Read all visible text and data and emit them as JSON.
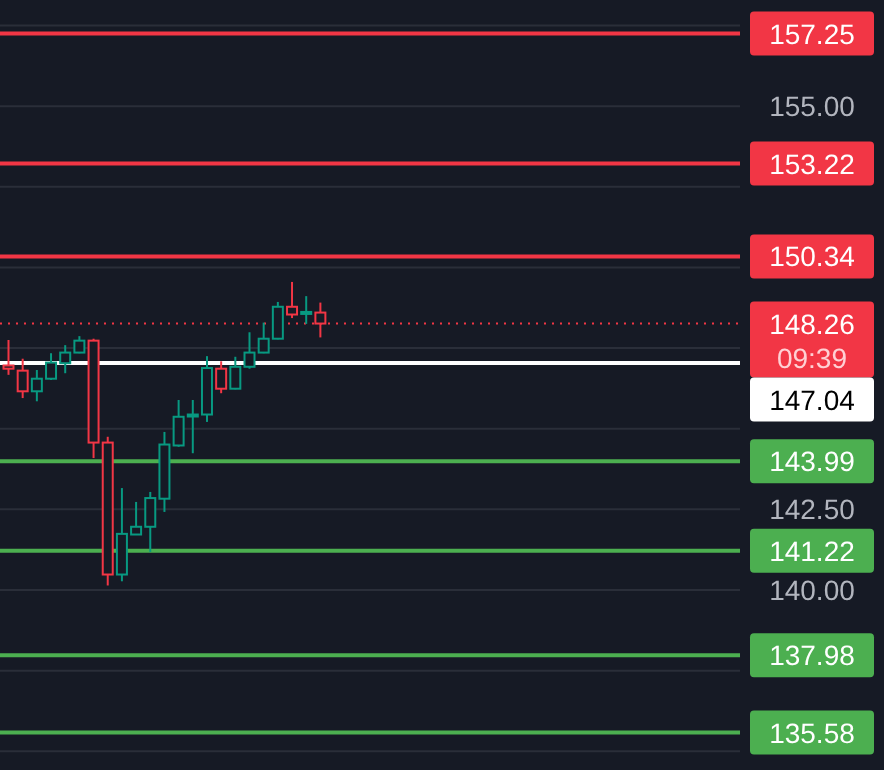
{
  "chart_data": {
    "type": "candlestick",
    "categories": [
      null,
      null,
      null,
      null,
      null,
      null,
      null,
      null,
      null,
      null,
      null,
      null,
      null,
      null,
      null,
      null,
      null,
      null,
      null,
      null,
      null,
      null,
      null,
      null,
      null,
      null,
      null,
      null,
      null,
      null,
      null,
      null,
      null,
      null,
      null,
      null,
      null,
      null,
      null,
      null,
      null,
      null,
      null,
      null,
      null,
      null,
      null,
      null,
      null,
      null,
      null,
      null
    ],
    "ohlc": [
      [
        146.96,
        147.75,
        146.67,
        146.86
      ],
      [
        146.8,
        147.17,
        145.95,
        146.16
      ],
      [
        146.16,
        146.82,
        145.85,
        146.55
      ],
      [
        146.55,
        147.34,
        146.51,
        147.05
      ],
      [
        147.03,
        147.59,
        146.72,
        147.36
      ],
      [
        147.36,
        147.87,
        147.34,
        147.73
      ],
      [
        147.73,
        147.79,
        144.09,
        144.57
      ],
      [
        144.57,
        144.75,
        140.14,
        140.48
      ],
      [
        140.48,
        143.16,
        140.27,
        141.74
      ],
      [
        141.72,
        142.73,
        141.72,
        141.96
      ],
      [
        141.96,
        143.04,
        141.18,
        142.85
      ],
      [
        142.83,
        144.9,
        142.42,
        144.51
      ],
      [
        144.48,
        145.89,
        144.44,
        145.37
      ],
      [
        145.44,
        145.89,
        144.24,
        145.44
      ],
      [
        145.44,
        147.25,
        145.21,
        146.88
      ],
      [
        146.86,
        147.09,
        146.1,
        146.24
      ],
      [
        146.24,
        147.23,
        146.22,
        146.92
      ],
      [
        146.92,
        147.99,
        146.86,
        147.36
      ],
      [
        147.36,
        148.29,
        147.34,
        147.79
      ],
      [
        147.79,
        148.93,
        147.77,
        148.78
      ],
      [
        148.78,
        149.55,
        148.43,
        148.54
      ],
      [
        148.62,
        149.11,
        148.25,
        148.62
      ],
      [
        148.6,
        148.91,
        147.83,
        148.26
      ],
      null,
      null,
      null,
      null,
      null,
      null,
      null,
      null,
      null,
      null,
      null,
      null,
      null,
      null,
      null,
      null,
      null,
      null,
      null,
      null,
      null,
      null,
      null,
      null,
      null,
      null,
      null,
      null,
      null
    ],
    "colors": [
      "#f23645",
      "#f23645",
      "#089981",
      "#089981",
      "#089981",
      "#089981",
      "#f23645",
      "#f23645",
      "#089981",
      "#089981",
      "#089981",
      "#089981",
      "#089981",
      "#089981",
      "#089981",
      "#f23645",
      "#089981",
      "#089981",
      "#089981",
      "#089981",
      "#f23645",
      "#089981",
      "#f23645",
      null,
      null,
      null,
      null,
      null,
      null,
      null,
      null,
      null,
      null,
      null,
      null,
      null,
      null,
      null,
      null,
      null,
      null,
      null,
      null,
      null,
      null,
      null,
      null,
      null,
      null,
      null,
      null,
      null
    ],
    "ylim": [
      134.42,
      158.29
    ],
    "yticks": [
      {
        "value": 135,
        "label": null
      },
      {
        "value": 137.5,
        "label": null
      },
      {
        "value": 140,
        "label": "140.00"
      },
      {
        "value": 142.5,
        "label": "142.50"
      },
      {
        "value": 145,
        "label": null
      },
      {
        "value": 147.5,
        "label": null
      },
      {
        "value": 150,
        "label": null
      },
      {
        "value": 152.5,
        "label": null
      },
      {
        "value": 155,
        "label": "155.00"
      },
      {
        "value": 157.5,
        "label": null
      }
    ],
    "grid": "y",
    "tick_labels": "y",
    "ref_lines": [
      {
        "axis": "y",
        "value": 157.25,
        "label": "157.25",
        "color": "#f23645"
      },
      {
        "axis": "y",
        "value": 153.22,
        "label": "153.22",
        "color": "#f23645"
      },
      {
        "axis": "y",
        "value": 150.34,
        "label": "150.34",
        "color": "#f23645"
      },
      {
        "axis": "y",
        "value": 148.26,
        "label": "148.26",
        "color": "#f23645",
        "line_style": "dotted"
      },
      {
        "axis": "y",
        "value": 147.04,
        "label": "147.04",
        "color": "#ffffff"
      },
      {
        "axis": "y",
        "value": 143.99,
        "label": "143.99",
        "color": "#4caf50"
      },
      {
        "axis": "y",
        "value": 141.22,
        "label": "141.22",
        "color": "#4caf50"
      },
      {
        "axis": "y",
        "value": 137.98,
        "label": "137.98",
        "color": "#4caf50"
      },
      {
        "axis": "y",
        "value": 135.58,
        "label": "135.58",
        "color": "#4caf50"
      }
    ],
    "annotations": [
      "09:39"
    ]
  }
}
